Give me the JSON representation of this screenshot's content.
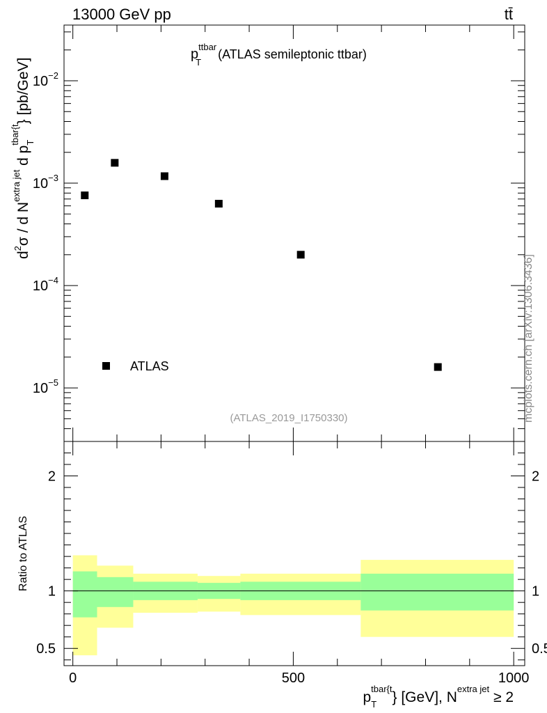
{
  "header": {
    "energy_label": "13000 GeV pp",
    "process_label": "tt̄"
  },
  "main_title": {
    "var": "p",
    "sub": "T",
    "sup": "ttbar",
    "rest": "(ATLAS semileptonic ttbar)"
  },
  "side_label": "mcplots.cern.ch [arXiv:1306.3436]",
  "analysis_tag": "(ATLAS_2019_I1750330)",
  "ylabel_top": {
    "p1": "d",
    "p1sup": "2",
    "p2": "σ / d N",
    "p2sup": "extra jet",
    "p3": " d p",
    "p3sub": "T",
    "p3sup": "tbar{t",
    "p4": "} [pb/GeV]"
  },
  "ylabel_bottom": "Ratio to ATLAS",
  "xlabel": {
    "p1": "p",
    "p1sub": "T",
    "p1sup": "tbar{t",
    "p2": "} [GeV], N",
    "p2sup": "extra jet",
    "p3": " ≥ 2"
  },
  "colors": {
    "data_marker": "#000000",
    "band_inner": "#99ff99",
    "band_outer": "#ffff99",
    "axis": "#000000"
  },
  "chart_data": [
    {
      "type": "scatter",
      "yscale": "log",
      "xlim": [
        -20,
        1025
      ],
      "ylim": [
        3e-06,
        0.035
      ],
      "x_ticks": [
        0,
        500,
        1000
      ],
      "y_ticks": [
        {
          "value": 1e-05,
          "base": "10",
          "exp": "−5"
        },
        {
          "value": 0.0001,
          "base": "10",
          "exp": "−4"
        },
        {
          "value": 0.001,
          "base": "10",
          "exp": "−3"
        },
        {
          "value": 0.01,
          "base": "10",
          "exp": "−2"
        }
      ],
      "legend": {
        "entry": "ATLAS",
        "placement": "lower-left"
      },
      "series": [
        {
          "name": "ATLAS",
          "points": [
            {
              "x": 27,
              "y": 0.00076
            },
            {
              "x": 95,
              "y": 0.00158
            },
            {
              "x": 208,
              "y": 0.00117
            },
            {
              "x": 331,
              "y": 0.00063
            },
            {
              "x": 517,
              "y": 0.0002
            },
            {
              "x": 828,
              "y": 1.6e-05
            }
          ]
        }
      ]
    },
    {
      "type": "area",
      "xlim": [
        -20,
        1025
      ],
      "ylim": [
        0.35,
        2.3
      ],
      "x_ticks": [
        0,
        500,
        1000
      ],
      "y_ticks": [
        0.5,
        1,
        2
      ],
      "reference_line": 1,
      "bins": [
        {
          "lo": 0,
          "hi": 55,
          "inner": [
            0.77,
            1.17
          ],
          "outer": [
            0.44,
            1.31
          ]
        },
        {
          "lo": 55,
          "hi": 137,
          "inner": [
            0.86,
            1.12
          ],
          "outer": [
            0.68,
            1.22
          ]
        },
        {
          "lo": 137,
          "hi": 283,
          "inner": [
            0.92,
            1.08
          ],
          "outer": [
            0.81,
            1.15
          ]
        },
        {
          "lo": 283,
          "hi": 380,
          "inner": [
            0.93,
            1.07
          ],
          "outer": [
            0.82,
            1.13
          ]
        },
        {
          "lo": 380,
          "hi": 653,
          "inner": [
            0.92,
            1.08
          ],
          "outer": [
            0.79,
            1.15
          ]
        },
        {
          "lo": 653,
          "hi": 1000,
          "inner": [
            0.83,
            1.15
          ],
          "outer": [
            0.6,
            1.27
          ]
        }
      ]
    }
  ]
}
